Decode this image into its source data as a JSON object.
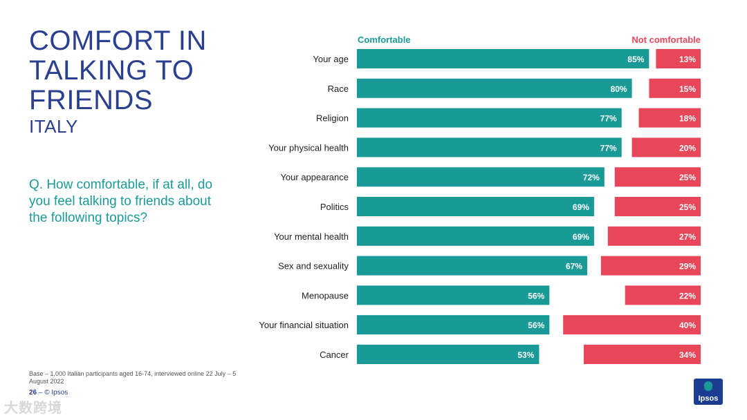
{
  "slide": {
    "title": "COMFORT IN TALKING TO FRIENDS",
    "subtitle": "ITALY",
    "question": "Q. How comfortable, if at all, do you feel talking to friends about the following topics?",
    "base_note": "Base – 1,000 Italian participants aged 16-74, interviewed online 22 July – 5 August 2022",
    "page_number": "26",
    "copyright": "– © Ipsos",
    "logo_text": "Ipsos",
    "watermark": "大数跨境"
  },
  "colors": {
    "comfortable": "#1a9a97",
    "not_comfortable": "#e8475a",
    "title": "#2a3f8f"
  },
  "chart_data": {
    "type": "bar",
    "orientation": "horizontal",
    "categories": [
      "Your age",
      "Race",
      "Religion",
      "Your physical health",
      "Your appearance",
      "Politics",
      "Your mental health",
      "Sex and sexuality",
      "Menopause",
      "Your financial situation",
      "Cancer"
    ],
    "series": [
      {
        "name": "Comfortable",
        "values": [
          85,
          80,
          77,
          77,
          72,
          69,
          69,
          67,
          56,
          56,
          53
        ]
      },
      {
        "name": "Not comfortable",
        "values": [
          13,
          15,
          18,
          20,
          25,
          25,
          27,
          29,
          22,
          40,
          34
        ]
      }
    ],
    "value_suffix": "%",
    "xlim": [
      0,
      100
    ],
    "grid": false,
    "legend_position": "top"
  }
}
